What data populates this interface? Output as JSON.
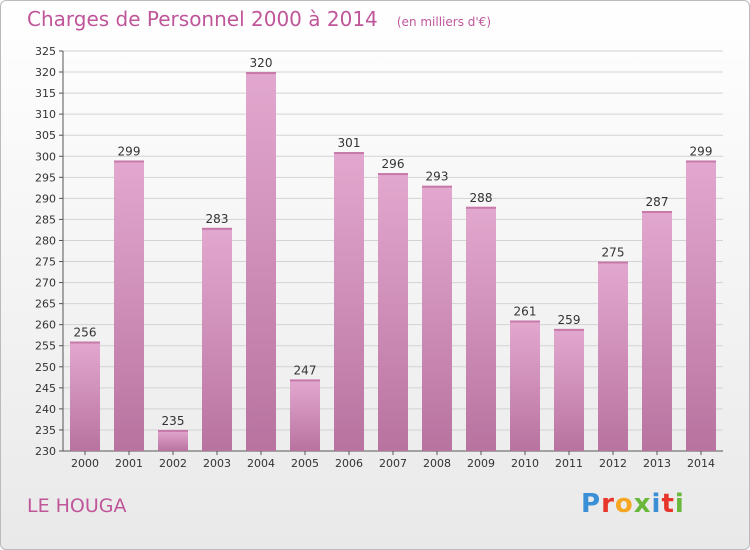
{
  "header": {
    "title": "Charges de Personnel 2000 à 2014",
    "subtitle": "(en milliers d'€)"
  },
  "footer": {
    "commune": "LE HOUGA",
    "logo_letters": [
      "P",
      "r",
      "o",
      "x",
      "i",
      "t",
      "i"
    ],
    "logo_colors": [
      "#3a8fd6",
      "#e8352b",
      "#f5a623",
      "#6ab83b",
      "#3a8fd6",
      "#e8352b",
      "#6ab83b"
    ]
  },
  "colors": {
    "bar_top": "#e3a8cf",
    "bar_bottom": "#b8739f",
    "accent": "#c0569a"
  },
  "chart_data": {
    "type": "bar",
    "title": "Charges de Personnel 2000 à 2014",
    "subtitle": "(en milliers d'€)",
    "categories": [
      "2000",
      "2001",
      "2002",
      "2003",
      "2004",
      "2005",
      "2006",
      "2007",
      "2008",
      "2009",
      "2010",
      "2011",
      "2012",
      "2013",
      "2014"
    ],
    "values": [
      256,
      299,
      235,
      283,
      320,
      247,
      301,
      296,
      293,
      288,
      261,
      259,
      275,
      287,
      299
    ],
    "ylim": [
      230,
      325
    ],
    "ytick_step": 5,
    "grid": true,
    "legend": "none"
  }
}
